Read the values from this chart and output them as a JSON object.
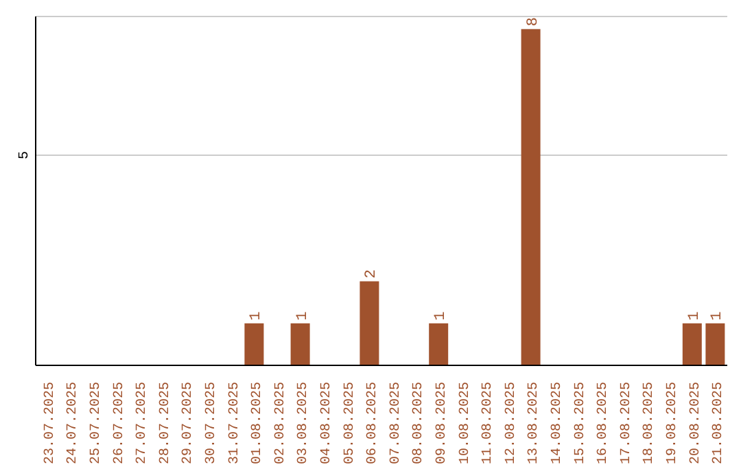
{
  "chart_data": {
    "type": "bar",
    "categories": [
      "23.07.2025",
      "24.07.2025",
      "25.07.2025",
      "26.07.2025",
      "27.07.2025",
      "28.07.2025",
      "29.07.2025",
      "30.07.2025",
      "31.07.2025",
      "01.08.2025",
      "02.08.2025",
      "03.08.2025",
      "04.08.2025",
      "05.08.2025",
      "06.08.2025",
      "07.08.2025",
      "08.08.2025",
      "09.08.2025",
      "10.08.2025",
      "11.08.2025",
      "12.08.2025",
      "13.08.2025",
      "14.08.2025",
      "15.08.2025",
      "16.08.2025",
      "17.08.2025",
      "18.08.2025",
      "19.08.2025",
      "20.08.2025",
      "21.08.2025"
    ],
    "values": [
      0,
      0,
      0,
      0,
      0,
      0,
      0,
      0,
      0,
      1,
      0,
      1,
      0,
      0,
      2,
      0,
      0,
      1,
      0,
      0,
      0,
      8,
      0,
      0,
      0,
      0,
      0,
      0,
      1,
      1
    ],
    "value_labels": [
      null,
      null,
      null,
      null,
      null,
      null,
      null,
      null,
      null,
      "1",
      null,
      "1",
      null,
      null,
      "2",
      null,
      null,
      "1",
      null,
      null,
      null,
      "8",
      null,
      null,
      null,
      null,
      null,
      null,
      "1",
      "1"
    ],
    "color": "#a0522d",
    "ylim": [
      0,
      8.3
    ],
    "yticks": [
      5
    ],
    "grid": "y"
  }
}
